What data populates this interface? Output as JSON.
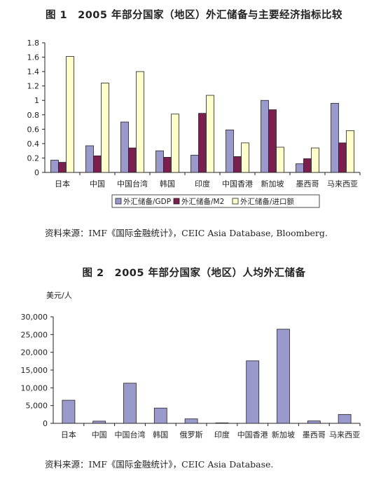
{
  "colors": {
    "series1": "#9999cc",
    "series2": "#7a1f4e",
    "series3": "#ffffcc",
    "stroke": "#222222"
  },
  "figure1": {
    "title": "图 1　2005 年部分国家（地区）外汇储备与主要经济指标比较",
    "source": "资料来源：IMF《国际金融统计》，CEIC Asia Database, Bloomberg."
  },
  "figure2": {
    "title": "图 2　2005 年部分国家（地区）人均外汇储备",
    "source": "资料来源：IMF《国际金融统计》，CEIC Asia Database."
  },
  "chart_data": [
    {
      "type": "bar",
      "title": "图 1　2005 年部分国家（地区）外汇储备与主要经济指标比较",
      "categories": [
        "日本",
        "中国",
        "中国台湾",
        "韩国",
        "印度",
        "中国香港",
        "新加坡",
        "墨西哥",
        "马来西亚"
      ],
      "series": [
        {
          "name": "外汇储备/GDP",
          "values": [
            0.17,
            0.37,
            0.7,
            0.3,
            0.24,
            0.59,
            1.0,
            0.12,
            0.96
          ]
        },
        {
          "name": "外汇储备/M2",
          "values": [
            0.14,
            0.23,
            0.34,
            0.21,
            0.82,
            0.22,
            0.87,
            0.19,
            0.41
          ]
        },
        {
          "name": "外汇储备/进口额",
          "values": [
            1.61,
            1.24,
            1.4,
            0.81,
            1.07,
            0.41,
            0.35,
            0.34,
            0.58
          ]
        }
      ],
      "yticks": [
        "0",
        "0.2",
        "0.4",
        "0.6",
        "0.8",
        "1",
        "1.2",
        "1.4",
        "1.6",
        "1.8"
      ],
      "ylim": [
        0,
        1.8
      ],
      "legend_position": "bottom",
      "grid": false
    },
    {
      "type": "bar",
      "title": "图 2　2005 年部分国家（地区）人均外汇储备",
      "ylabel": "美元/人",
      "categories": [
        "日本",
        "中国",
        "中国台湾",
        "韩国",
        "俄罗斯",
        "印度",
        "中国香港",
        "新加坡",
        "墨西哥",
        "马来西亚"
      ],
      "series": [
        {
          "values": [
            6500,
            620,
            11300,
            4300,
            1250,
            130,
            17600,
            26500,
            680,
            2500
          ]
        }
      ],
      "yticks": [
        "0",
        "5,000",
        "10,000",
        "15,000",
        "20,000",
        "25,000",
        "30,000"
      ],
      "ylim": [
        0,
        30000
      ],
      "grid": false
    }
  ]
}
